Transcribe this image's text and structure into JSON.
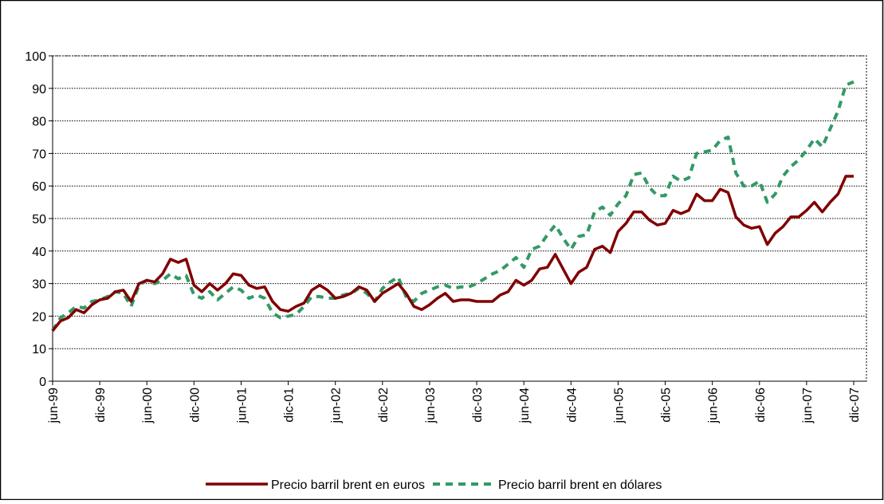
{
  "chart_data": {
    "type": "line",
    "categories": [
      "jun-99",
      null,
      null,
      null,
      null,
      null,
      "dic-99",
      null,
      null,
      null,
      null,
      null,
      "jun-00",
      null,
      null,
      null,
      null,
      null,
      "dic-00",
      null,
      null,
      null,
      null,
      null,
      "jun-01",
      null,
      null,
      null,
      null,
      null,
      "dic-01",
      null,
      null,
      null,
      null,
      null,
      "jun-02",
      null,
      null,
      null,
      null,
      null,
      "dic-02",
      null,
      null,
      null,
      null,
      null,
      "jun-03",
      null,
      null,
      null,
      null,
      null,
      "dic-03",
      null,
      null,
      null,
      null,
      null,
      "jun-04",
      null,
      null,
      null,
      null,
      null,
      "dic-04",
      null,
      null,
      null,
      null,
      null,
      "jun-05",
      null,
      null,
      null,
      null,
      null,
      "dic-05",
      null,
      null,
      null,
      null,
      null,
      "jun-06",
      null,
      null,
      null,
      null,
      null,
      "dic-06",
      null,
      null,
      null,
      null,
      null,
      "jun-07",
      null,
      null,
      null,
      null,
      null,
      "dic-07"
    ],
    "series": [
      {
        "name": "Precio barril brent en euros",
        "color": "#800000",
        "dash": false,
        "values": [
          15.5,
          18.5,
          19.5,
          22,
          21,
          23.5,
          25,
          25.5,
          27.5,
          28,
          24.5,
          30,
          31,
          30.5,
          33,
          37.5,
          36.5,
          37.5,
          29.5,
          27.5,
          30,
          28,
          30,
          33,
          32.5,
          29.5,
          28.5,
          29,
          24.5,
          22,
          21.5,
          23,
          24,
          28,
          29.5,
          28,
          25.5,
          26,
          27,
          29,
          28,
          24.5,
          27,
          28.5,
          30,
          27,
          23,
          22,
          23.5,
          25.5,
          27,
          24.5,
          25,
          25,
          24.5,
          24.5,
          24.5,
          26.5,
          27.5,
          31,
          29.5,
          31,
          34.5,
          35,
          39,
          34.5,
          30,
          33.5,
          35,
          40.5,
          41.5,
          39.5,
          46,
          48.5,
          52,
          52,
          49.5,
          48,
          48.5,
          52.5,
          51.5,
          52.5,
          57.5,
          55.5,
          55.5,
          59,
          58,
          50.5,
          48,
          47,
          47.5,
          42,
          45.5,
          47.5,
          50.5,
          50.5,
          52.5,
          55,
          52,
          55,
          57.5,
          63,
          63
        ]
      },
      {
        "name": "Precio barril brent en dólares",
        "color": "#339966",
        "dash": true,
        "values": [
          15.5,
          19.5,
          21,
          23,
          22.5,
          24.5,
          25,
          26,
          27.5,
          27,
          23,
          29.5,
          31,
          30,
          31,
          33,
          31.5,
          32.5,
          26.5,
          25.5,
          27.5,
          25,
          27,
          29,
          28,
          25.5,
          26.5,
          25.5,
          21,
          19.5,
          20,
          20.5,
          23,
          26,
          26,
          25.5,
          25.5,
          26.5,
          27,
          28.5,
          27,
          24.5,
          28.5,
          30.5,
          32,
          26,
          24.5,
          27,
          28,
          29,
          29.5,
          28.5,
          29,
          29,
          30,
          31.5,
          33,
          34,
          36,
          38,
          35,
          40.5,
          41.5,
          45,
          48,
          44,
          40.5,
          44.5,
          45,
          52,
          53.5,
          51,
          54.5,
          57,
          63.5,
          64,
          59.5,
          57,
          57,
          63,
          61.5,
          62.5,
          70,
          70.5,
          71,
          74,
          75,
          64,
          60,
          60,
          61.5,
          55,
          57.5,
          63,
          66,
          68,
          71,
          74.5,
          72,
          77.5,
          83,
          91,
          92
        ]
      }
    ],
    "ylim": [
      0,
      100
    ],
    "yticks": [
      0,
      10,
      20,
      30,
      40,
      50,
      60,
      70,
      80,
      90,
      100
    ],
    "grid": true,
    "legend": "bottom"
  }
}
